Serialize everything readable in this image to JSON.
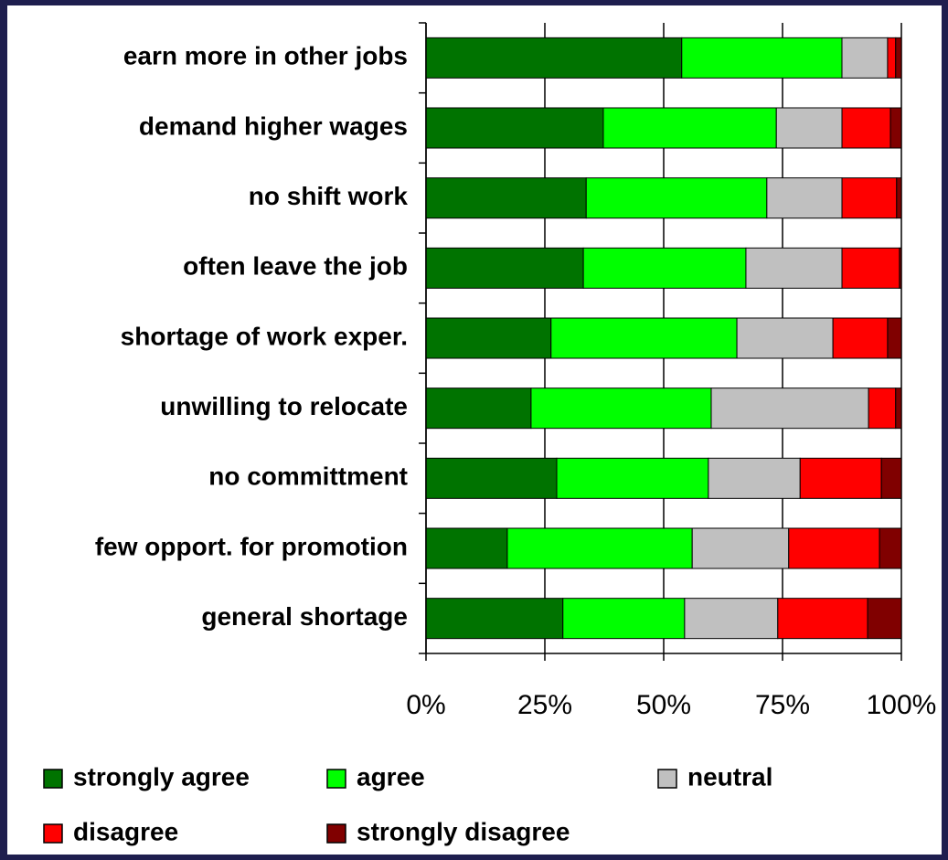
{
  "chart_data": {
    "type": "stacked-barh",
    "categories": [
      "earn more in other jobs",
      "demand higher wages",
      "no shift work",
      "often leave the job",
      "shortage of work exper.",
      "unwilling to relocate",
      "no committment",
      "few opport. for promotion",
      "general shortage"
    ],
    "series": [
      {
        "name": "strongly agree",
        "color": "#007300",
        "values": [
          53.8,
          37.3,
          33.7,
          33.1,
          26.3,
          22.1,
          27.5,
          17.1,
          28.8
        ]
      },
      {
        "name": "agree",
        "color": "#00ff00",
        "values": [
          33.7,
          36.4,
          38.0,
          34.2,
          39.1,
          37.9,
          31.9,
          38.9,
          25.6
        ]
      },
      {
        "name": "neutral",
        "color": "#c0c0c0",
        "values": [
          9.6,
          13.8,
          15.8,
          20.2,
          20.2,
          33.1,
          19.3,
          20.3,
          19.6
        ]
      },
      {
        "name": "disagree",
        "color": "#ff0000",
        "values": [
          1.7,
          10.2,
          11.5,
          12.1,
          11.5,
          5.7,
          17.1,
          19.1,
          18.9
        ]
      },
      {
        "name": "strongly disagree",
        "color": "#800000",
        "values": [
          1.2,
          2.3,
          1.0,
          0.4,
          2.9,
          1.2,
          4.2,
          4.6,
          7.1
        ]
      }
    ],
    "xlim": [
      0,
      100
    ],
    "xticks": [
      {
        "value": 0,
        "label": "0%"
      },
      {
        "value": 25,
        "label": "25%"
      },
      {
        "value": 50,
        "label": "50%"
      },
      {
        "value": 75,
        "label": "75%"
      },
      {
        "value": 100,
        "label": "100%"
      }
    ],
    "grid": true
  }
}
